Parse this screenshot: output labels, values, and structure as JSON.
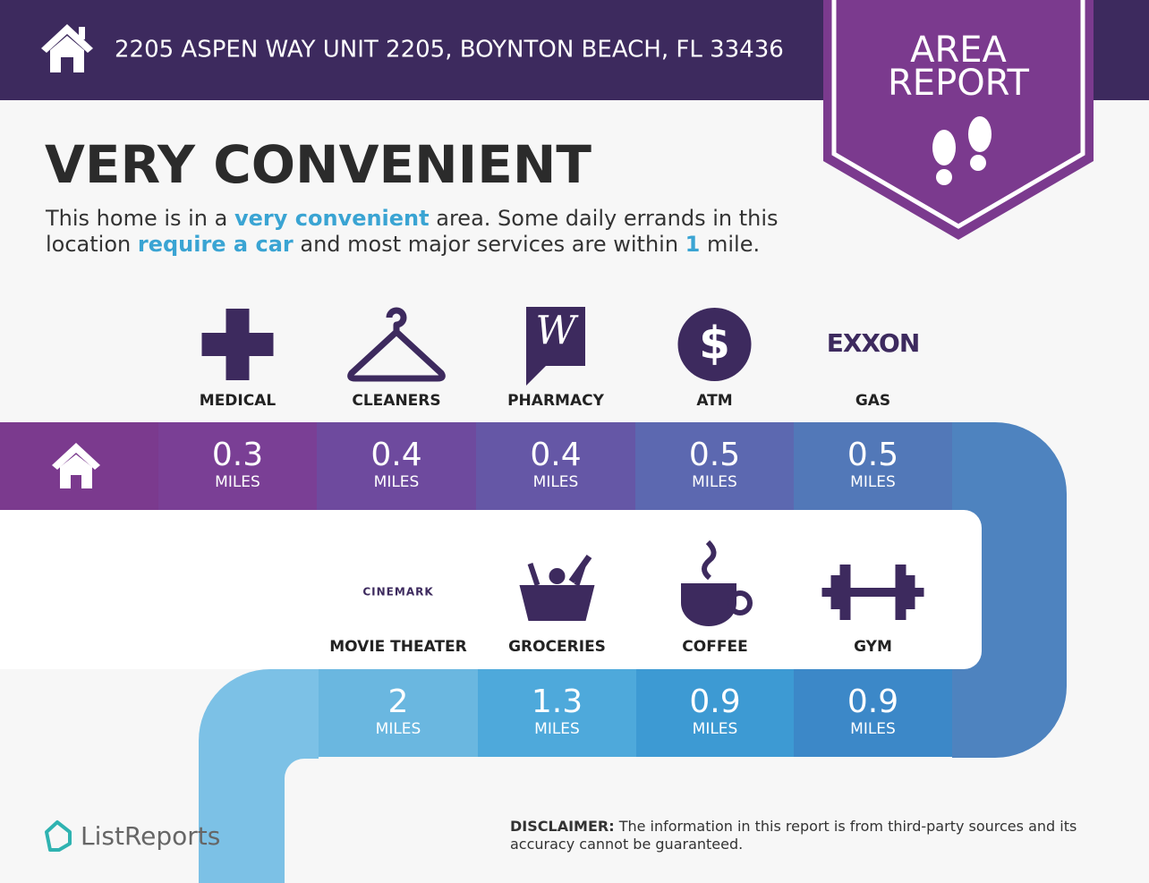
{
  "header": {
    "address": "2205 ASPEN WAY UNIT 2205, BOYNTON BEACH, FL 33436",
    "badge": [
      "AREA",
      "REPORT"
    ]
  },
  "title": "VERY CONVENIENT",
  "summary": [
    [
      {
        "text": "This home is in a "
      },
      {
        "text": "very convenient",
        "highlight": true
      },
      {
        "text": " area. Some daily errands in this"
      }
    ],
    [
      {
        "text": "location "
      },
      {
        "text": "require a car",
        "highlight": true
      },
      {
        "text": " and most major services are within "
      },
      {
        "text": "1",
        "highlight": true
      },
      {
        "text": " mile."
      }
    ]
  ],
  "row1": [
    {
      "label": "MEDICAL",
      "distance": "0.3",
      "unit": "MILES"
    },
    {
      "label": "CLEANERS",
      "distance": "0.4",
      "unit": "MILES"
    },
    {
      "label": "PHARMACY",
      "distance": "0.4",
      "unit": "MILES"
    },
    {
      "label": "ATM",
      "distance": "0.5",
      "unit": "MILES"
    },
    {
      "label": "GAS",
      "logo": "EXXON",
      "distance": "0.5",
      "unit": "MILES"
    }
  ],
  "row2": [
    {
      "label": "MOVIE THEATER",
      "logo": "CINEMARK",
      "distance": "2",
      "unit": "MILES"
    },
    {
      "label": "GROCERIES",
      "distance": "1.3",
      "unit": "MILES"
    },
    {
      "label": "COFFEE",
      "distance": "0.9",
      "unit": "MILES"
    },
    {
      "label": "GYM",
      "distance": "0.9",
      "unit": "MILES"
    }
  ],
  "footer": {
    "brand": "ListReports",
    "disclaimer_label": "DISCLAIMER:",
    "disclaimer": " The information in this report is from third-party sources and its accuracy cannot be guaranteed."
  }
}
